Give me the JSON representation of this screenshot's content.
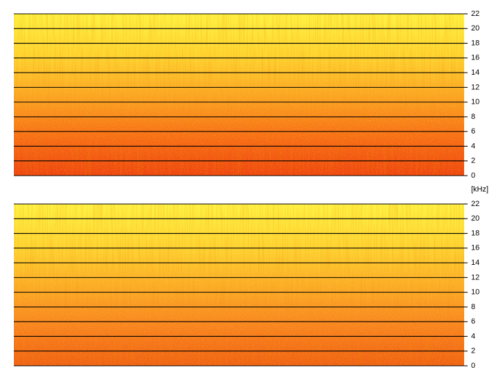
{
  "chart_data": [
    {
      "type": "spectrogram",
      "ylim": [
        0,
        22
      ],
      "yticks": [
        0,
        2,
        4,
        6,
        8,
        10,
        12,
        14,
        16,
        18,
        20,
        22
      ],
      "y_label": "[kHz]",
      "grid": true,
      "colormap": [
        "#ee3d08",
        "#f86a10",
        "#fca51e",
        "#ffd52c",
        "#fff23c"
      ]
    },
    {
      "type": "spectrogram",
      "ylim": [
        0,
        22
      ],
      "yticks": [
        0,
        2,
        4,
        6,
        8,
        10,
        12,
        14,
        16,
        18,
        20,
        22
      ],
      "grid": true,
      "colormap": [
        "#f05a0c",
        "#f9801a",
        "#fcac22",
        "#ffd62e",
        "#fff23e"
      ]
    }
  ]
}
